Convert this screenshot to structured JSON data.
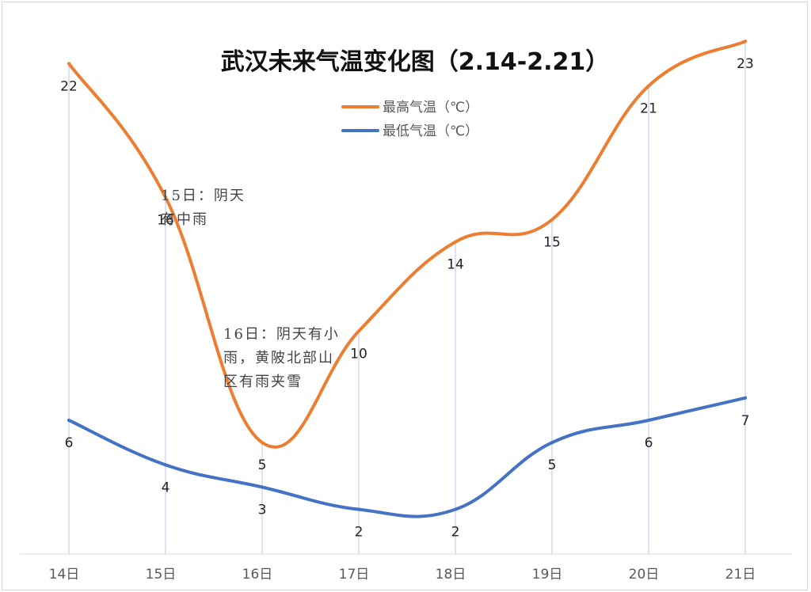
{
  "chart_data": {
    "type": "line",
    "title": "武汉未来气温变化图（2.14-2.21）",
    "categories": [
      "14日",
      "15日",
      "16日",
      "17日",
      "18日",
      "19日",
      "20日",
      "21日"
    ],
    "series": [
      {
        "name": "最高气温（℃）",
        "color": "#ED7D31",
        "values": [
          22,
          16,
          5,
          10,
          14,
          15,
          21,
          23
        ]
      },
      {
        "name": "最低气温（℃）",
        "color": "#4472C4",
        "values": [
          6,
          4,
          3,
          2,
          2,
          5,
          6,
          7
        ]
      }
    ],
    "ylim": [
      0,
      24
    ],
    "legend_position": "top",
    "grid": false,
    "annotations": [
      {
        "category": "15日",
        "lines": [
          "15日：阴天",
          "有中雨"
        ]
      },
      {
        "category": "16日",
        "lines": [
          "16日：阴天有小",
          "雨，黄陂北部山",
          "区有雨夹雪"
        ]
      }
    ]
  }
}
